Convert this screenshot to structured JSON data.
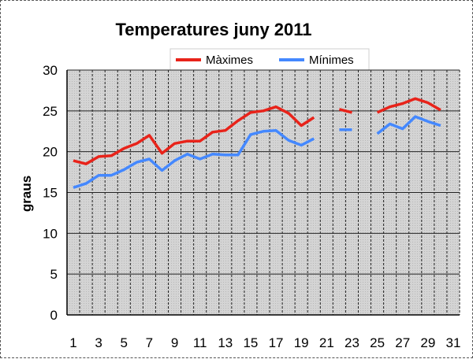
{
  "chart_data": {
    "type": "line",
    "title": "Temperatures juny 2011",
    "ylabel": "graus",
    "xlabel": "",
    "ylim": [
      0,
      30
    ],
    "yticks": [
      0,
      5,
      10,
      15,
      20,
      25,
      30
    ],
    "xlim": [
      1,
      31
    ],
    "xticks": [
      1,
      3,
      5,
      7,
      9,
      11,
      13,
      15,
      17,
      19,
      21,
      23,
      25,
      27,
      29,
      31
    ],
    "grid": true,
    "legend_position": "top-right",
    "x": [
      1,
      2,
      3,
      4,
      5,
      6,
      7,
      8,
      9,
      10,
      11,
      12,
      13,
      14,
      15,
      16,
      17,
      18,
      19,
      20,
      21,
      22,
      23,
      24,
      25,
      26,
      27,
      28,
      29,
      30
    ],
    "series": [
      {
        "name": "Màximes",
        "color": "#e8231a",
        "values": [
          18.9,
          18.5,
          19.4,
          19.5,
          20.4,
          21.0,
          22.0,
          19.8,
          21.0,
          21.3,
          21.3,
          22.4,
          22.6,
          23.8,
          24.8,
          25.0,
          25.5,
          24.7,
          23.2,
          24.2,
          null,
          25.2,
          24.8,
          null,
          24.8,
          25.5,
          25.9,
          26.5,
          26.0,
          25.1
        ]
      },
      {
        "name": "Mínimes",
        "color": "#4488ff",
        "values": [
          15.6,
          16.1,
          17.1,
          17.1,
          17.8,
          18.7,
          19.1,
          17.7,
          18.9,
          19.7,
          19.1,
          19.7,
          19.6,
          19.6,
          22.1,
          22.5,
          22.6,
          21.4,
          20.8,
          21.6,
          null,
          22.7,
          22.7,
          null,
          22.2,
          23.4,
          22.8,
          24.3,
          23.7,
          23.2
        ]
      }
    ]
  }
}
